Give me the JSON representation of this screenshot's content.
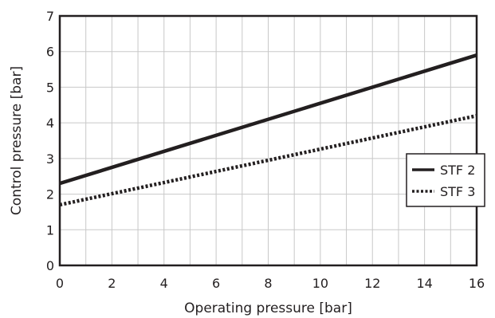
{
  "chart_data": {
    "type": "line",
    "xlabel": "Operating pressure [bar]",
    "ylabel": "Control pressure [bar]",
    "xlim": [
      0,
      16
    ],
    "ylim": [
      0,
      7
    ],
    "x_ticks": [
      "0",
      "2",
      "4",
      "6",
      "8",
      "10",
      "12",
      "14",
      "16"
    ],
    "y_ticks": [
      "0",
      "1",
      "2",
      "3",
      "4",
      "5",
      "6",
      "7"
    ],
    "minor_grid_step_x": 1,
    "grid": true,
    "legend_position": "right",
    "series": [
      {
        "name": "STF 2",
        "style": "solid",
        "x": [
          0,
          16
        ],
        "y": [
          2.3,
          5.9
        ]
      },
      {
        "name": "STF 3",
        "style": "dotted",
        "x": [
          0,
          16
        ],
        "y": [
          1.7,
          4.2
        ]
      }
    ],
    "colors": {
      "line": "#231f20",
      "grid": "#c8c8c8",
      "frame": "#231f20"
    }
  }
}
